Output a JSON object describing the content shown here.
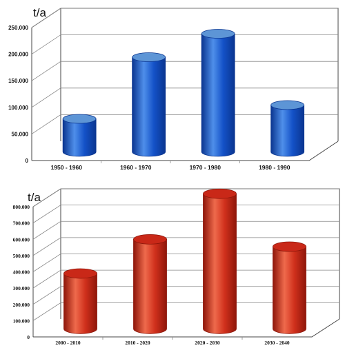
{
  "chart_data": [
    {
      "type": "bar",
      "unit_label": "t/a",
      "categories": [
        "1950 - 1960",
        "1960 - 1970",
        "1970 - 1980",
        "1980 - 1990"
      ],
      "series": [
        {
          "values": [
            62000,
            178000,
            222000,
            88000
          ]
        }
      ],
      "yticks": [
        "0",
        "50.000",
        "100.000",
        "150.000",
        "200.000",
        "250.000"
      ],
      "ylim": [
        0,
        250000
      ],
      "grid": true,
      "colors": {
        "bar": "#1452c8",
        "bar_dark": "#0a3590",
        "bar_light": "#4f8fea",
        "top": "#5d95d6"
      }
    },
    {
      "type": "bar",
      "unit_label": "t/a",
      "categories": [
        "2000 - 2010",
        "2010 - 2020",
        "2020 - 2030",
        "2030 - 2040"
      ],
      "series": [
        {
          "values": [
            340000,
            550000,
            830000,
            505000
          ]
        }
      ],
      "yticks": [
        "0",
        "100.000",
        "200.000",
        "300.000",
        "400.000",
        "500.000",
        "600.000",
        "700.000",
        "800.000"
      ],
      "ylim": [
        0,
        800000
      ],
      "grid": true,
      "colors": {
        "bar": "#d0301c",
        "bar_dark": "#8e160a",
        "bar_light": "#ef6a4c",
        "top": "#c92818"
      }
    }
  ]
}
